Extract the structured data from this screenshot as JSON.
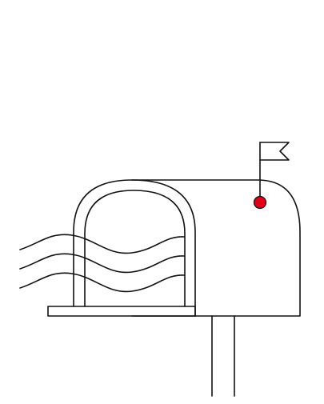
{
  "illustration": {
    "subject": "mailbox-icon",
    "stroke_color": "#111111",
    "flag_dot_color": "#e00019",
    "background_color": "#ffffff"
  }
}
